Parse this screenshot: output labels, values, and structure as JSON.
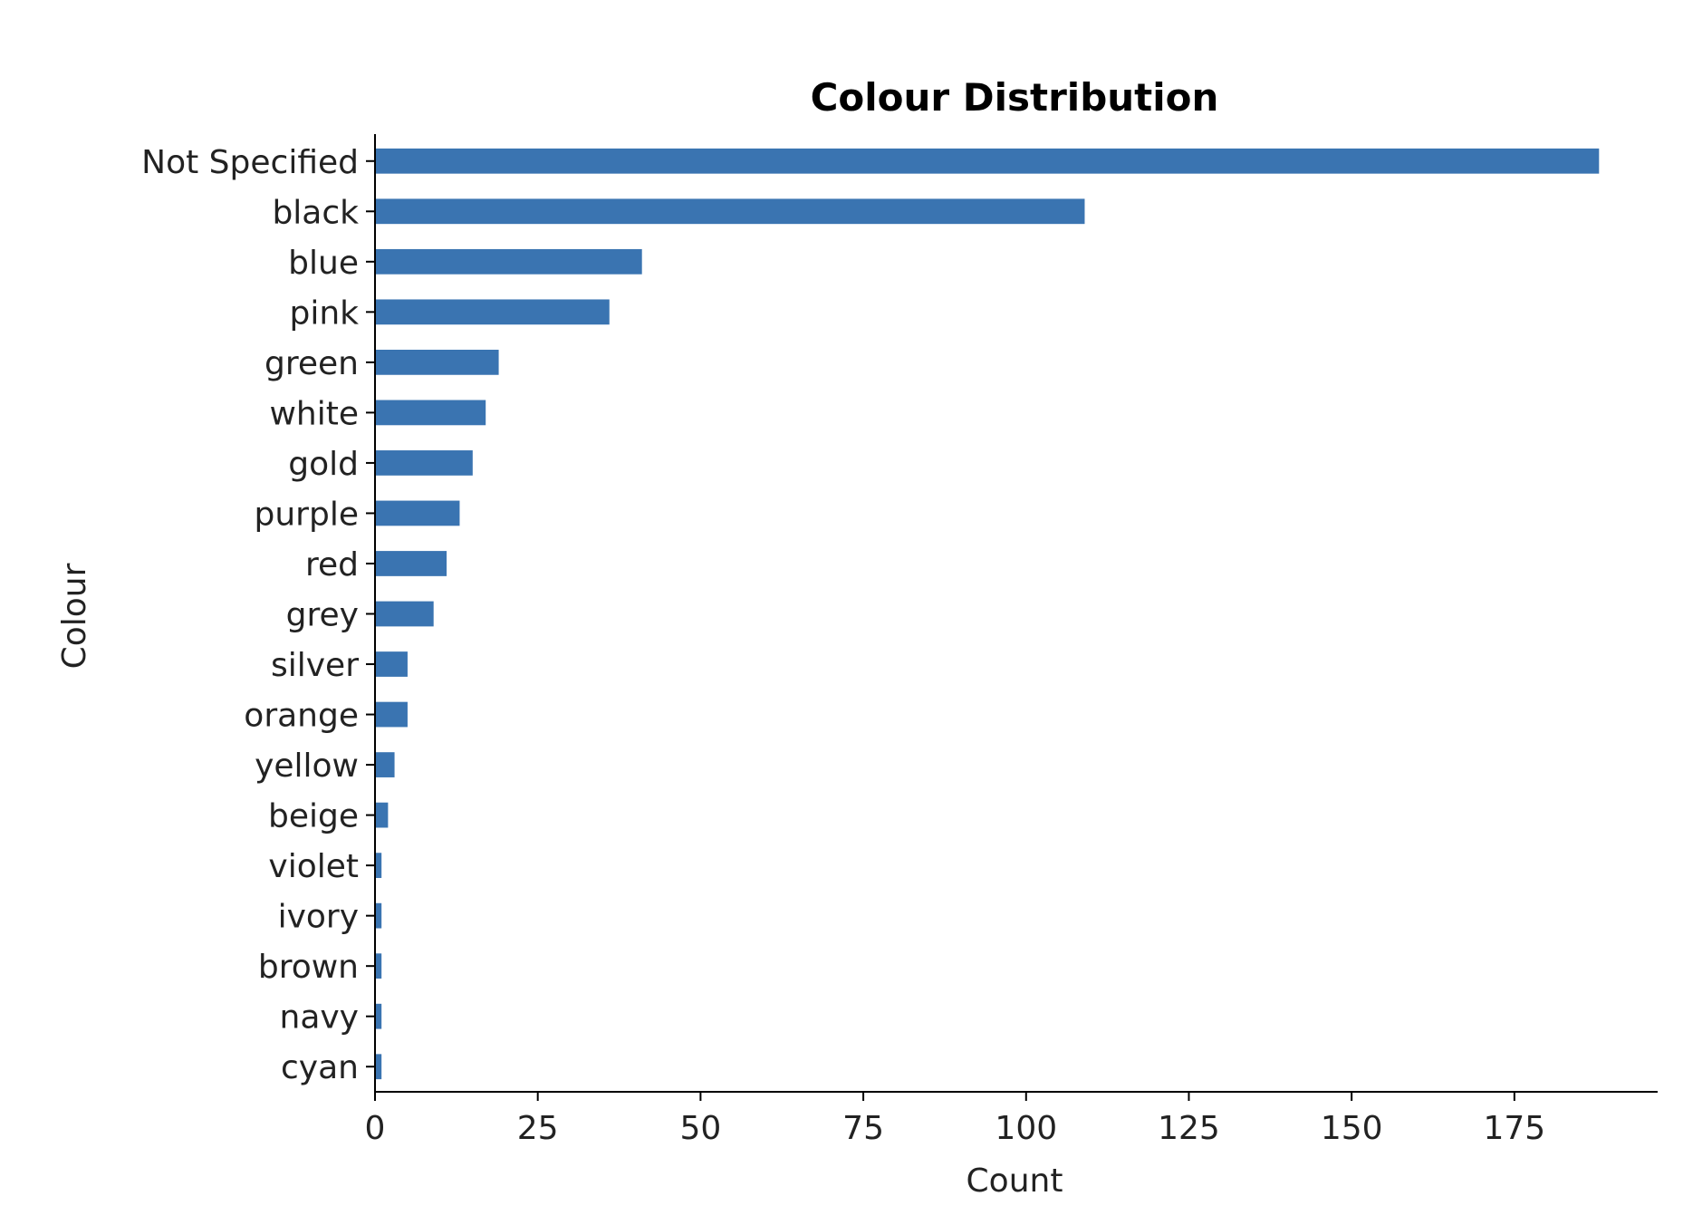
{
  "chart_data": {
    "type": "bar",
    "orientation": "horizontal",
    "title": "Colour Distribution",
    "xlabel": "Count",
    "ylabel": "Colour",
    "categories": [
      "Not Specified",
      "black",
      "blue",
      "pink",
      "green",
      "white",
      "gold",
      "purple",
      "red",
      "grey",
      "silver",
      "orange",
      "yellow",
      "beige",
      "violet",
      "ivory",
      "brown",
      "navy",
      "cyan"
    ],
    "values": [
      188,
      109,
      41,
      36,
      19,
      17,
      15,
      13,
      11,
      9,
      5,
      5,
      3,
      2,
      1,
      1,
      1,
      1,
      1
    ],
    "xlim": [
      0,
      197
    ],
    "xticks": [
      0,
      25,
      50,
      75,
      100,
      125,
      150,
      175
    ],
    "grid": false,
    "legend": "none",
    "bar_color": "#3a74b1"
  }
}
